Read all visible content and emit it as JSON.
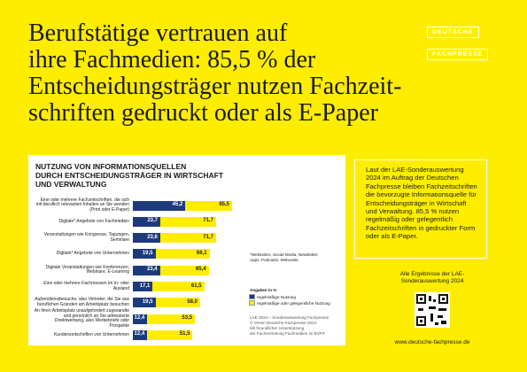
{
  "header": {
    "title_lines": [
      "Berufstätige vertrauen auf",
      "ihre Fachmedien: 85,5 % der",
      "Entscheidungsträger nutzen Fachzeit-",
      "schriften gedruckt oder als E-Paper"
    ],
    "logo": [
      "DEUTSCHE",
      "FACHPRESSE"
    ]
  },
  "chart_data": {
    "type": "bar",
    "orientation": "horizontal",
    "title_lines": [
      "NUTZUNG VON INFORMATIONSQUELLEN",
      "DURCH ENTSCHEIDUNGSTRÄGER IN WIRTSCHAFT",
      "UND VERWALTUNG"
    ],
    "categories": [
      "Eine oder mehrere Fachzeitschriften, die sich mit beruflich relevanten Inhalten an Sie wenden (Print oder E-Paper)",
      "Digitale* Angebote von Fachmedien",
      "Veranstaltungen wie Kongresse, Tagungen, Seminare",
      "Digitale* Angebote von Unternehmen",
      "Digitale Veranstaltungen wie Konferenzen, Webinare, E-Learning",
      "Eine oder mehrere Fachmessen im In- oder Ausland",
      "Außendienstbesuche, also Vertreter, die Sie aus beruflichen Gründen am Arbeitsplatz besuchen",
      "An Ihren Arbeitsplatz unaufgefordert zugesandte und persönlich an Sie adressierte Direktwerbung, also Werbebriefe oder Prospekte",
      "Kundenzeitschriften von Unternehmen"
    ],
    "series": [
      {
        "name": "regelmäßige oder gelegentliche Nutzung",
        "color": "#ffed00",
        "values": [
          85.5,
          71.7,
          71.7,
          66.1,
          65.4,
          61.5,
          58.0,
          53.5,
          51.5
        ],
        "value_labels": [
          "85,5",
          "71,7",
          "71,7",
          "66,1",
          "65,4",
          "61,5",
          "58,0",
          "53,5",
          "51,5"
        ]
      },
      {
        "name": "regelmäßige Nutzung",
        "color": "#1d3b7c",
        "values": [
          45.2,
          23.7,
          23.6,
          19.5,
          23.4,
          17.1,
          19.5,
          12.4,
          12.4
        ],
        "value_labels": [
          "45,2",
          "23,7",
          "23,6",
          "19,5",
          "23,4",
          "17,1",
          "19,5",
          "12,4",
          "12,4"
        ]
      }
    ],
    "footnote": "*Webseiten, Social Media, Newsletter, Apps, Podcasts, Webcasts",
    "units_note": "Angaben in %",
    "source_lines": [
      "LAE 2024 – Sonderauswertung Fachpresse",
      "© Verein Deutsche Fachpresse 2024",
      "Mit freundlicher Unterstützung",
      "der Fachvertretung Fachmedien im BVFP"
    ]
  },
  "sidebar": {
    "box_text": "Laut der LAE-Sonderauswertung 2024 im Auftrag der Deutschen Fachpresse bleiben Fachzeitschriften die bevorzugte Informationsquelle für Entscheidungsträger in Wirtschaft und Verwaltung. 85,5 % nutzen regelmäßig oder gelegentlich Fachzeitschriften in gedruckter Form oder als E-Paper.",
    "results_note": "Alle Ergebnisse der LAE-Sonderauswertung 2024",
    "url": "www.deutsche-fachpresse.de"
  }
}
